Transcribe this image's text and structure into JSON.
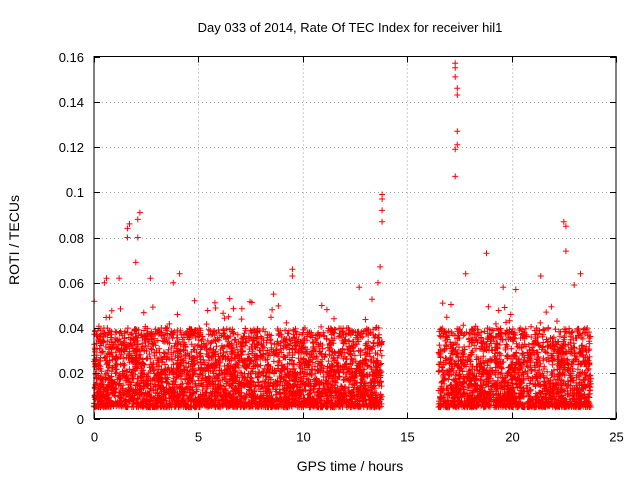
{
  "chart_data": {
    "type": "scatter",
    "title": "Day 033 of 2014, Rate Of TEC Index for receiver hil1",
    "xlabel": "GPS time / hours",
    "ylabel": "ROTI / TECUs",
    "xlim": [
      0,
      25
    ],
    "ylim": [
      0,
      0.16
    ],
    "xticks": [
      0,
      5,
      10,
      15,
      20,
      25
    ],
    "yticks": [
      0,
      0.02,
      0.04,
      0.06,
      0.08,
      0.1,
      0.12,
      0.14,
      0.16
    ],
    "xtick_labels": [
      "0",
      "5",
      "10",
      "15",
      "20",
      "25"
    ],
    "ytick_labels": [
      "0",
      "0.02",
      "0.04",
      "0.06",
      "0.08",
      "0.1",
      "0.12",
      "0.14",
      "0.16"
    ],
    "grid": true,
    "marker": "+",
    "marker_color": "#ff0000",
    "series": [
      {
        "name": "ROTI",
        "segments": [
          {
            "x_start": 0.0,
            "x_end": 13.8,
            "typical_low": 0.005,
            "typical_high": 0.04
          },
          {
            "x_start": 16.5,
            "x_end": 23.8,
            "typical_low": 0.005,
            "typical_high": 0.04
          }
        ],
        "outliers": [
          [
            0.5,
            0.06
          ],
          [
            0.6,
            0.062
          ],
          [
            1.2,
            0.062
          ],
          [
            1.6,
            0.084
          ],
          [
            1.6,
            0.08
          ],
          [
            1.7,
            0.086
          ],
          [
            2.0,
            0.069
          ],
          [
            2.1,
            0.088
          ],
          [
            2.2,
            0.091
          ],
          [
            2.1,
            0.08
          ],
          [
            2.7,
            0.062
          ],
          [
            3.8,
            0.06
          ],
          [
            4.1,
            0.064
          ],
          [
            6.5,
            0.053
          ],
          [
            8.6,
            0.055
          ],
          [
            9.5,
            0.066
          ],
          [
            9.5,
            0.063
          ],
          [
            12.7,
            0.058
          ],
          [
            13.7,
            0.067
          ],
          [
            13.6,
            0.06
          ],
          [
            13.8,
            0.099
          ],
          [
            13.8,
            0.097
          ],
          [
            13.8,
            0.092
          ],
          [
            13.8,
            0.087
          ],
          [
            16.7,
            0.051
          ],
          [
            17.3,
            0.157
          ],
          [
            17.3,
            0.155
          ],
          [
            17.3,
            0.151
          ],
          [
            17.4,
            0.146
          ],
          [
            17.4,
            0.143
          ],
          [
            17.4,
            0.127
          ],
          [
            17.4,
            0.121
          ],
          [
            17.3,
            0.119
          ],
          [
            17.3,
            0.107
          ],
          [
            17.8,
            0.064
          ],
          [
            18.8,
            0.073
          ],
          [
            19.6,
            0.058
          ],
          [
            20.2,
            0.057
          ],
          [
            21.4,
            0.063
          ],
          [
            22.5,
            0.087
          ],
          [
            22.6,
            0.085
          ],
          [
            22.6,
            0.074
          ],
          [
            23.3,
            0.064
          ],
          [
            23.0,
            0.059
          ]
        ]
      }
    ]
  }
}
